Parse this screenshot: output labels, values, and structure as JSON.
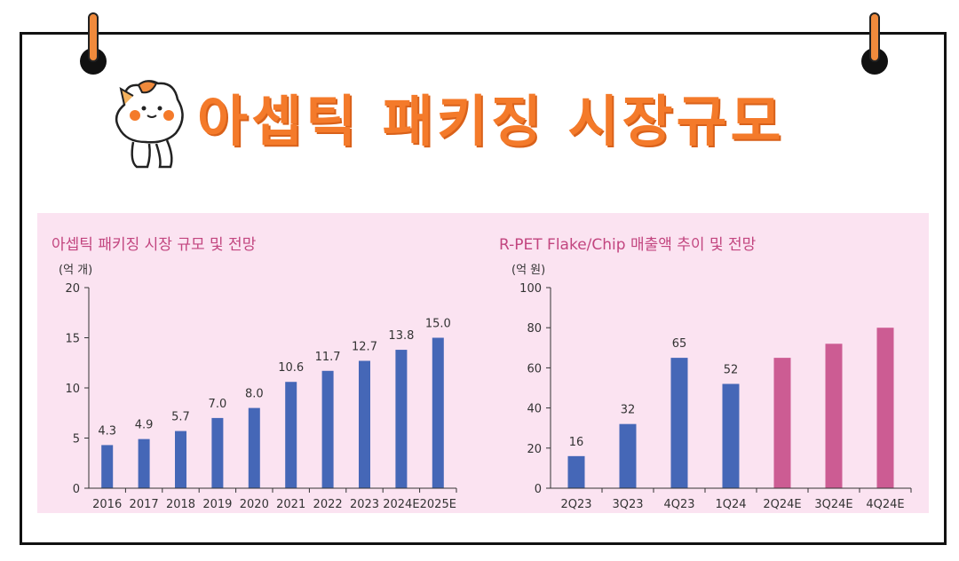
{
  "page": {
    "heading": "아셉틱 패키징 시장규모",
    "colors": {
      "accent": "#f47a2a",
      "panel_bg": "#fbe3f1",
      "title_pink": "#c2457f"
    }
  },
  "chart_data": [
    {
      "type": "bar",
      "title": "아셉틱 패키징 시장 규모 및 전망",
      "unit_label": "(억 개)",
      "categories": [
        "2016",
        "2017",
        "2018",
        "2019",
        "2020",
        "2021",
        "2022",
        "2023",
        "2024E",
        "2025E"
      ],
      "values": [
        4.3,
        4.9,
        5.7,
        7.0,
        8.0,
        10.6,
        11.7,
        12.7,
        13.8,
        15.0
      ],
      "value_labels": [
        "4.3",
        "4.9",
        "5.7",
        "7.0",
        "8.0",
        "10.6",
        "11.7",
        "12.7",
        "13.8",
        "15.0"
      ],
      "ylim": [
        0,
        20
      ],
      "yticks": [
        0,
        5,
        10,
        15,
        20
      ],
      "bar_color": "#4567b7",
      "grid": false
    },
    {
      "type": "bar",
      "title": "R-PET Flake/Chip 매출액 추이 및 전망",
      "unit_label": "(억 원)",
      "categories": [
        "2Q23",
        "3Q23",
        "4Q23",
        "1Q24",
        "2Q24E",
        "3Q24E",
        "4Q24E"
      ],
      "values": [
        16,
        32,
        65,
        52,
        65,
        72,
        80
      ],
      "value_labels": [
        "16",
        "32",
        "65",
        "52",
        "",
        "",
        ""
      ],
      "ylim": [
        0,
        100
      ],
      "yticks": [
        0,
        20,
        40,
        60,
        80,
        100
      ],
      "bar_colors": [
        "#4567b7",
        "#4567b7",
        "#4567b7",
        "#4567b7",
        "#cc5c93",
        "#cc5c93",
        "#cc5c93"
      ],
      "grid": false
    }
  ]
}
